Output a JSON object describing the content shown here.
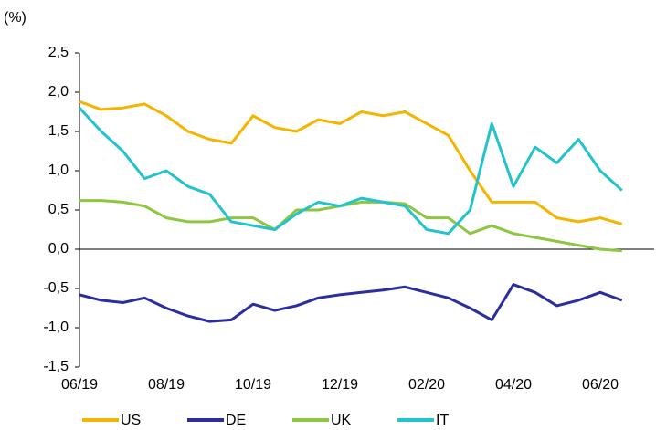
{
  "chart_data": {
    "type": "line",
    "y_label": "(%)",
    "categories": [
      "06/19",
      null,
      null,
      null,
      "08/19",
      null,
      null,
      null,
      "10/19",
      null,
      null,
      null,
      "12/19",
      null,
      null,
      null,
      "02/20",
      null,
      null,
      null,
      "04/20",
      null,
      null,
      null,
      "06/20",
      null
    ],
    "series": [
      {
        "name": "US",
        "color": "#f5b400",
        "values": [
          1.88,
          1.78,
          1.8,
          1.85,
          1.7,
          1.5,
          1.4,
          1.35,
          1.7,
          1.55,
          1.5,
          1.65,
          1.6,
          1.75,
          1.7,
          1.75,
          1.6,
          1.45,
          1.0,
          0.6,
          0.6,
          0.6,
          0.4,
          0.35,
          0.4,
          0.32
        ]
      },
      {
        "name": "DE",
        "color": "#2b2e9e",
        "values": [
          -0.58,
          -0.65,
          -0.68,
          -0.62,
          -0.75,
          -0.85,
          -0.92,
          -0.9,
          -0.7,
          -0.78,
          -0.72,
          -0.62,
          -0.58,
          -0.55,
          -0.52,
          -0.48,
          -0.55,
          -0.62,
          -0.75,
          -0.9,
          -0.45,
          -0.55,
          -0.72,
          -0.65,
          -0.55,
          -0.65
        ]
      },
      {
        "name": "UK",
        "color": "#8dc63f",
        "values": [
          0.62,
          0.62,
          0.6,
          0.55,
          0.4,
          0.35,
          0.35,
          0.4,
          0.4,
          0.25,
          0.5,
          0.5,
          0.55,
          0.6,
          0.6,
          0.58,
          0.4,
          0.4,
          0.2,
          0.3,
          0.2,
          0.15,
          0.1,
          0.05,
          0.0,
          -0.02
        ]
      },
      {
        "name": "IT",
        "color": "#22c3cc",
        "values": [
          1.8,
          1.5,
          1.25,
          0.9,
          1.0,
          0.8,
          0.7,
          0.35,
          0.3,
          0.25,
          0.45,
          0.6,
          0.55,
          0.65,
          0.6,
          0.55,
          0.25,
          0.2,
          0.5,
          1.6,
          0.8,
          1.3,
          1.1,
          1.4,
          1.0,
          0.75
        ]
      }
    ],
    "ylim": [
      -1.5,
      2.5
    ],
    "yticks": [
      {
        "value": -1.5,
        "label": "-1,5"
      },
      {
        "value": -1.0,
        "label": "-1,0"
      },
      {
        "value": -0.5,
        "label": "-0,5"
      },
      {
        "value": 0,
        "label": "0,0"
      },
      {
        "value": 0.5,
        "label": "0,5"
      },
      {
        "value": 1.0,
        "label": "1,0"
      },
      {
        "value": 1.5,
        "label": "1,5"
      },
      {
        "value": 2.0,
        "label": "2,0"
      },
      {
        "value": 2.5,
        "label": "2,5"
      }
    ]
  }
}
